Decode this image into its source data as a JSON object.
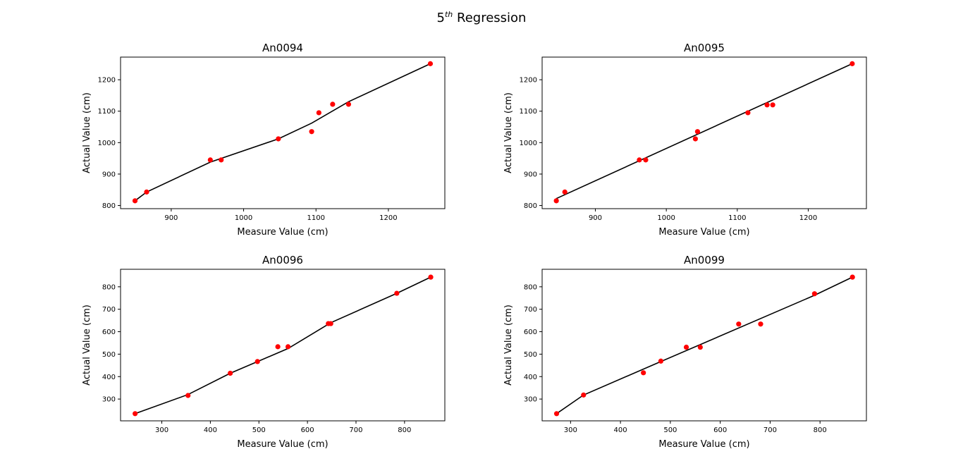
{
  "figure": {
    "suptitle_main": "5",
    "suptitle_sup": "th",
    "suptitle_rest": " Regression"
  },
  "style": {
    "point_color": "#ff0000",
    "line_color": "#000000"
  },
  "chart_data": [
    {
      "type": "scatter",
      "title": "An0094",
      "xlabel": "Measure Value (cm)",
      "ylabel": "Actual Value (cm)",
      "xlim": [
        830,
        1278
      ],
      "ylim": [
        790,
        1272
      ],
      "xticks": [
        900,
        1000,
        1100,
        1200
      ],
      "yticks": [
        800,
        900,
        1000,
        1100,
        1200
      ],
      "points": {
        "x": [
          850,
          866,
          954,
          969,
          1048,
          1094,
          1104,
          1123,
          1145,
          1258
        ],
        "y": [
          815,
          843,
          945,
          945,
          1012,
          1035,
          1095,
          1122,
          1122,
          1251
        ]
      },
      "fit_line": {
        "x": [
          850,
          866,
          954,
          1048,
          1094,
          1145,
          1258
        ],
        "y": [
          815,
          843,
          938,
          1012,
          1062,
          1130,
          1251
        ]
      }
    },
    {
      "type": "scatter",
      "title": "An0095",
      "xlabel": "Measure Value (cm)",
      "ylabel": "Actual Value (cm)",
      "xlim": [
        825,
        1282
      ],
      "ylim": [
        790,
        1272
      ],
      "xticks": [
        900,
        1000,
        1100,
        1200
      ],
      "yticks": [
        800,
        900,
        1000,
        1100,
        1200
      ],
      "points": {
        "x": [
          845,
          857,
          962,
          971,
          1041,
          1044,
          1115,
          1142,
          1150,
          1262
        ],
        "y": [
          815,
          843,
          945,
          945,
          1012,
          1035,
          1095,
          1120,
          1120,
          1251
        ]
      },
      "fit_line": {
        "x": [
          845,
          1262
        ],
        "y": [
          822,
          1251
        ]
      }
    },
    {
      "type": "scatter",
      "title": "An0096",
      "xlabel": "Measure Value (cm)",
      "ylabel": "Actual Value (cm)",
      "xlim": [
        215,
        883
      ],
      "ylim": [
        203,
        878
      ],
      "xticks": [
        300,
        400,
        500,
        600,
        700,
        800
      ],
      "yticks": [
        300,
        400,
        500,
        600,
        700,
        800
      ],
      "points": {
        "x": [
          245,
          354,
          441,
          497,
          539,
          560,
          643,
          648,
          784,
          854
        ],
        "y": [
          235,
          316,
          415,
          467,
          533,
          533,
          636,
          636,
          771,
          843
        ]
      },
      "fit_line": {
        "x": [
          245,
          354,
          441,
          560,
          648,
          784,
          854
        ],
        "y": [
          235,
          320,
          415,
          525,
          640,
          771,
          843
        ]
      }
    },
    {
      "type": "scatter",
      "title": "An0099",
      "xlabel": "Measure Value (cm)",
      "ylabel": "Actual Value (cm)",
      "xlim": [
        243,
        893
      ],
      "ylim": [
        203,
        878
      ],
      "xticks": [
        300,
        400,
        500,
        600,
        700,
        800
      ],
      "yticks": [
        300,
        400,
        500,
        600,
        700,
        800
      ],
      "points": {
        "x": [
          272,
          326,
          446,
          481,
          532,
          560,
          637,
          681,
          789,
          865
        ],
        "y": [
          235,
          318,
          417,
          469,
          531,
          531,
          634,
          634,
          769,
          843
        ]
      },
      "fit_line": {
        "x": [
          272,
          326,
          481,
          789,
          865
        ],
        "y": [
          235,
          318,
          467,
          762,
          843
        ]
      }
    }
  ]
}
